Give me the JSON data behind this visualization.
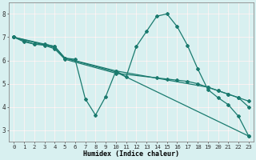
{
  "xlabel": "Humidex (Indice chaleur)",
  "line_color": "#1a7a6e",
  "bg_color": "#d8f0f0",
  "grid_color": "#ffffff",
  "grid_minor_color": "#e8f8f8",
  "xlim": [
    -0.5,
    23.5
  ],
  "ylim": [
    2.5,
    8.5
  ],
  "xticks": [
    0,
    1,
    2,
    3,
    4,
    5,
    6,
    7,
    8,
    9,
    10,
    11,
    12,
    13,
    14,
    15,
    16,
    17,
    18,
    19,
    20,
    21,
    22,
    23
  ],
  "yticks": [
    3,
    4,
    5,
    6,
    7,
    8
  ],
  "lines": [
    {
      "x": [
        0,
        1,
        2,
        3,
        4,
        5,
        6,
        7,
        8,
        9,
        10,
        11,
        12,
        13,
        14,
        15,
        16,
        17,
        18,
        19,
        20,
        21,
        22,
        23
      ],
      "y": [
        7.0,
        6.8,
        6.7,
        6.7,
        6.6,
        6.1,
        6.05,
        4.35,
        3.65,
        4.45,
        5.55,
        5.3,
        6.6,
        7.25,
        7.9,
        8.0,
        7.45,
        6.65,
        5.65,
        4.75,
        4.4,
        4.1,
        3.6,
        2.75
      ]
    },
    {
      "x": [
        0,
        4,
        5,
        10,
        23
      ],
      "y": [
        7.0,
        6.55,
        6.1,
        5.5,
        2.75
      ]
    },
    {
      "x": [
        0,
        4,
        5,
        10,
        19,
        20,
        21,
        22,
        23
      ],
      "y": [
        7.0,
        6.6,
        6.1,
        5.55,
        4.85,
        4.7,
        4.55,
        4.4,
        4.25
      ]
    },
    {
      "x": [
        0,
        2,
        3,
        4,
        5,
        10,
        14,
        15,
        16,
        17,
        18,
        19,
        20,
        21,
        22,
        23
      ],
      "y": [
        7.0,
        6.7,
        6.65,
        6.5,
        6.05,
        5.45,
        5.25,
        5.2,
        5.15,
        5.1,
        5.0,
        4.85,
        4.7,
        4.55,
        4.4,
        4.0
      ]
    }
  ]
}
